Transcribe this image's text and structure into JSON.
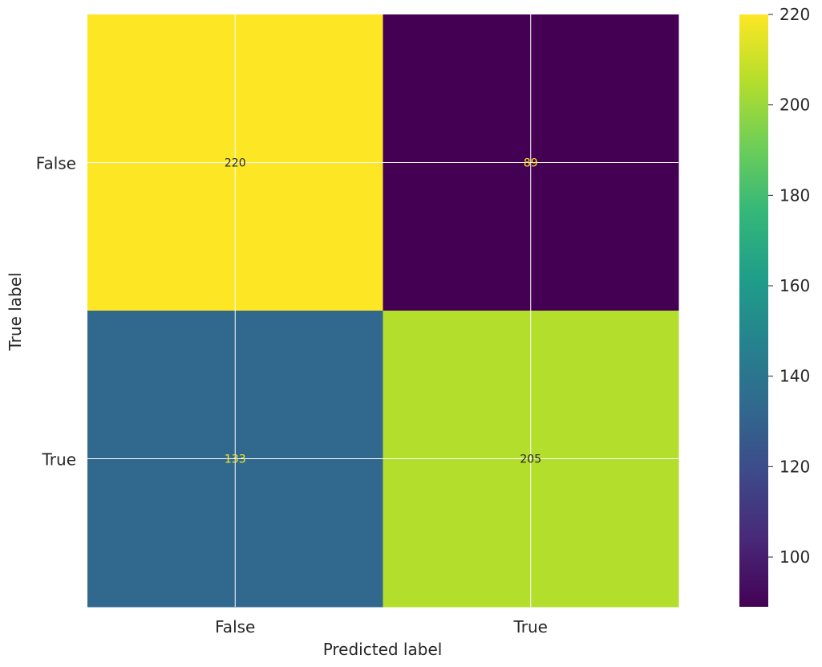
{
  "chart_data": {
    "type": "heatmap",
    "title": "",
    "xlabel": "Predicted label",
    "ylabel": "True label",
    "x_categories": [
      "False",
      "True"
    ],
    "y_categories": [
      "False",
      "True"
    ],
    "values": [
      [
        220,
        89
      ],
      [
        133,
        205
      ]
    ],
    "colormap": "viridis",
    "colorbar": {
      "range": [
        89,
        220
      ],
      "ticks": [
        100,
        120,
        140,
        160,
        180,
        200,
        220
      ]
    },
    "grid": true,
    "text_colors": {
      "on_dark": "#fde725",
      "on_light": "#262626"
    }
  }
}
